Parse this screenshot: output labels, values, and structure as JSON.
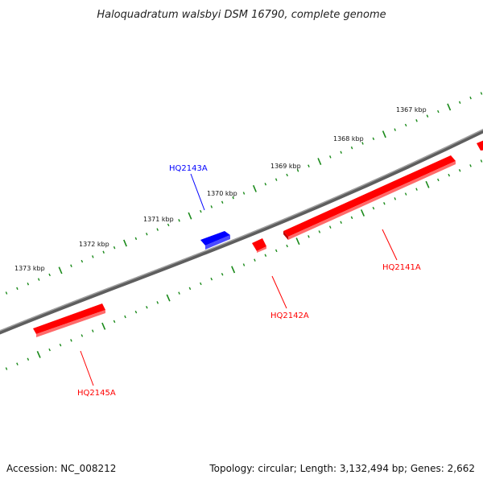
{
  "title": "Haloquadratum walsbyi DSM 16790, complete genome",
  "footer": {
    "accession": "Accession: NC_008212",
    "summary": "Topology: circular; Length: 3,132,494 bp; Genes: 2,662"
  },
  "colors": {
    "forward_strand": "#ff0000",
    "reverse_strand": "#0000ff",
    "ticks": "#1a8a1a",
    "backbone": "#808080"
  },
  "scale_labels": [
    "1367 kbp",
    "1368 kbp",
    "1369 kbp",
    "1370 kbp",
    "1371 kbp",
    "1372 kbp",
    "1373 kbp"
  ],
  "genes": [
    {
      "name": "HQ2141A",
      "strand": "forward"
    },
    {
      "name": "HQ2142A",
      "strand": "forward"
    },
    {
      "name": "HQ2143A",
      "strand": "reverse"
    },
    {
      "name": "HQ2145A",
      "strand": "forward"
    }
  ]
}
